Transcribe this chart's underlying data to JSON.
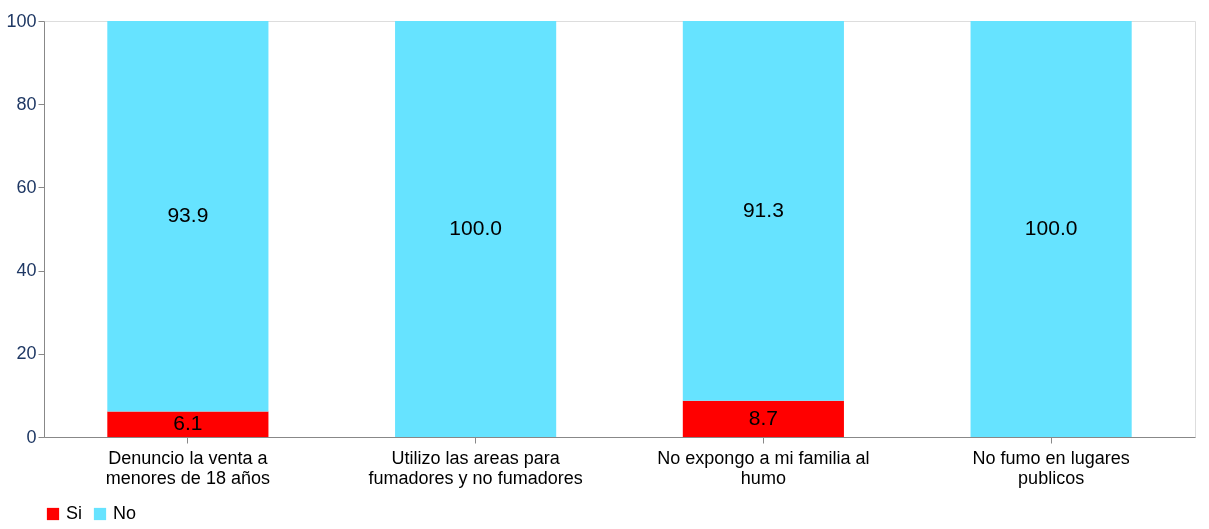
{
  "chart_data": {
    "type": "bar",
    "stacked": true,
    "categories": [
      "Denuncio la venta a menores de 18 años",
      "Utilizo las areas para fumadores y no fumadores",
      "No expongo a mi familia al humo",
      "No fumo en lugares publicos"
    ],
    "series": [
      {
        "name": "Si",
        "color": "#ff0000",
        "values": [
          6.1,
          null,
          8.7,
          null
        ],
        "value_labels": [
          "6.1",
          null,
          "8.7",
          null
        ]
      },
      {
        "name": "No",
        "color": "#66e3ff",
        "values": [
          93.9,
          100.0,
          91.3,
          100.0
        ],
        "value_labels": [
          "93.9",
          "100.0",
          "91.3",
          "100.0"
        ]
      }
    ],
    "ylim": [
      0,
      100
    ],
    "yticks": [
      0,
      20,
      40,
      60,
      80,
      100
    ],
    "grid": false,
    "legend": "bottom"
  }
}
